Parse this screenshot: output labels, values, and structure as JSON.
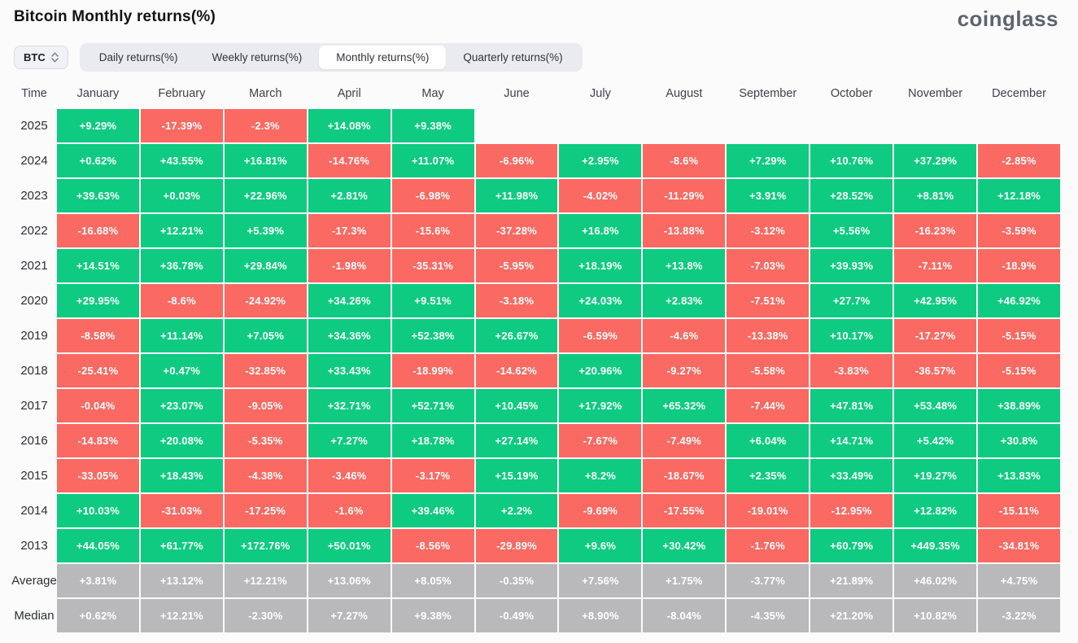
{
  "header": {
    "title": "Bitcoin Monthly returns(%)",
    "brand": "coinglass"
  },
  "controls": {
    "symbol_select": {
      "value": "BTC"
    },
    "tabs": [
      {
        "label": "Daily returns(%)",
        "active": false
      },
      {
        "label": "Weekly returns(%)",
        "active": false
      },
      {
        "label": "Monthly returns(%)",
        "active": true
      },
      {
        "label": "Quarterly returns(%)",
        "active": false
      }
    ]
  },
  "colors": {
    "positive": "#0ecb81",
    "negative": "#fa6962",
    "neutral": "#b9b9bb"
  },
  "chart_data": {
    "type": "heatmap",
    "title": "Bitcoin Monthly returns(%)",
    "time_header": "Time",
    "columns": [
      "January",
      "February",
      "March",
      "April",
      "May",
      "June",
      "July",
      "August",
      "September",
      "October",
      "November",
      "December"
    ],
    "cell_color_rule": "positive=green, negative=red, summary rows=gray",
    "rows": [
      {
        "label": "2025",
        "kind": "year",
        "values": [
          "+9.29%",
          "-17.39%",
          "-2.3%",
          "+14.08%",
          "+9.38%",
          null,
          null,
          null,
          null,
          null,
          null,
          null
        ]
      },
      {
        "label": "2024",
        "kind": "year",
        "values": [
          "+0.62%",
          "+43.55%",
          "+16.81%",
          "-14.76%",
          "+11.07%",
          "-6.96%",
          "+2.95%",
          "-8.6%",
          "+7.29%",
          "+10.76%",
          "+37.29%",
          "-2.85%"
        ]
      },
      {
        "label": "2023",
        "kind": "year",
        "values": [
          "+39.63%",
          "+0.03%",
          "+22.96%",
          "+2.81%",
          "-6.98%",
          "+11.98%",
          "-4.02%",
          "-11.29%",
          "+3.91%",
          "+28.52%",
          "+8.81%",
          "+12.18%"
        ]
      },
      {
        "label": "2022",
        "kind": "year",
        "values": [
          "-16.68%",
          "+12.21%",
          "+5.39%",
          "-17.3%",
          "-15.6%",
          "-37.28%",
          "+16.8%",
          "-13.88%",
          "-3.12%",
          "+5.56%",
          "-16.23%",
          "-3.59%"
        ]
      },
      {
        "label": "2021",
        "kind": "year",
        "values": [
          "+14.51%",
          "+36.78%",
          "+29.84%",
          "-1.98%",
          "-35.31%",
          "-5.95%",
          "+18.19%",
          "+13.8%",
          "-7.03%",
          "+39.93%",
          "-7.11%",
          "-18.9%"
        ]
      },
      {
        "label": "2020",
        "kind": "year",
        "values": [
          "+29.95%",
          "-8.6%",
          "-24.92%",
          "+34.26%",
          "+9.51%",
          "-3.18%",
          "+24.03%",
          "+2.83%",
          "-7.51%",
          "+27.7%",
          "+42.95%",
          "+46.92%"
        ]
      },
      {
        "label": "2019",
        "kind": "year",
        "values": [
          "-8.58%",
          "+11.14%",
          "+7.05%",
          "+34.36%",
          "+52.38%",
          "+26.67%",
          "-6.59%",
          "-4.6%",
          "-13.38%",
          "+10.17%",
          "-17.27%",
          "-5.15%"
        ]
      },
      {
        "label": "2018",
        "kind": "year",
        "values": [
          "-25.41%",
          "+0.47%",
          "-32.85%",
          "+33.43%",
          "-18.99%",
          "-14.62%",
          "+20.96%",
          "-9.27%",
          "-5.58%",
          "-3.83%",
          "-36.57%",
          "-5.15%"
        ]
      },
      {
        "label": "2017",
        "kind": "year",
        "values": [
          "-0.04%",
          "+23.07%",
          "-9.05%",
          "+32.71%",
          "+52.71%",
          "+10.45%",
          "+17.92%",
          "+65.32%",
          "-7.44%",
          "+47.81%",
          "+53.48%",
          "+38.89%"
        ]
      },
      {
        "label": "2016",
        "kind": "year",
        "values": [
          "-14.83%",
          "+20.08%",
          "-5.35%",
          "+7.27%",
          "+18.78%",
          "+27.14%",
          "-7.67%",
          "-7.49%",
          "+6.04%",
          "+14.71%",
          "+5.42%",
          "+30.8%"
        ]
      },
      {
        "label": "2015",
        "kind": "year",
        "values": [
          "-33.05%",
          "+18.43%",
          "-4.38%",
          "-3.46%",
          "-3.17%",
          "+15.19%",
          "+8.2%",
          "-18.67%",
          "+2.35%",
          "+33.49%",
          "+19.27%",
          "+13.83%"
        ]
      },
      {
        "label": "2014",
        "kind": "year",
        "values": [
          "+10.03%",
          "-31.03%",
          "-17.25%",
          "-1.6%",
          "+39.46%",
          "+2.2%",
          "-9.69%",
          "-17.55%",
          "-19.01%",
          "-12.95%",
          "+12.82%",
          "-15.11%"
        ]
      },
      {
        "label": "2013",
        "kind": "year",
        "values": [
          "+44.05%",
          "+61.77%",
          "+172.76%",
          "+50.01%",
          "-8.56%",
          "-29.89%",
          "+9.6%",
          "+30.42%",
          "-1.76%",
          "+60.79%",
          "+449.35%",
          "-34.81%"
        ]
      },
      {
        "label": "Average",
        "kind": "summary",
        "values": [
          "+3.81%",
          "+13.12%",
          "+12.21%",
          "+13.06%",
          "+8.05%",
          "-0.35%",
          "+7.56%",
          "+1.75%",
          "-3.77%",
          "+21.89%",
          "+46.02%",
          "+4.75%"
        ]
      },
      {
        "label": "Median",
        "kind": "summary",
        "values": [
          "+0.62%",
          "+12.21%",
          "-2.30%",
          "+7.27%",
          "+9.38%",
          "-0.49%",
          "+8.90%",
          "-8.04%",
          "-4.35%",
          "+21.20%",
          "+10.82%",
          "-3.22%"
        ]
      }
    ]
  }
}
